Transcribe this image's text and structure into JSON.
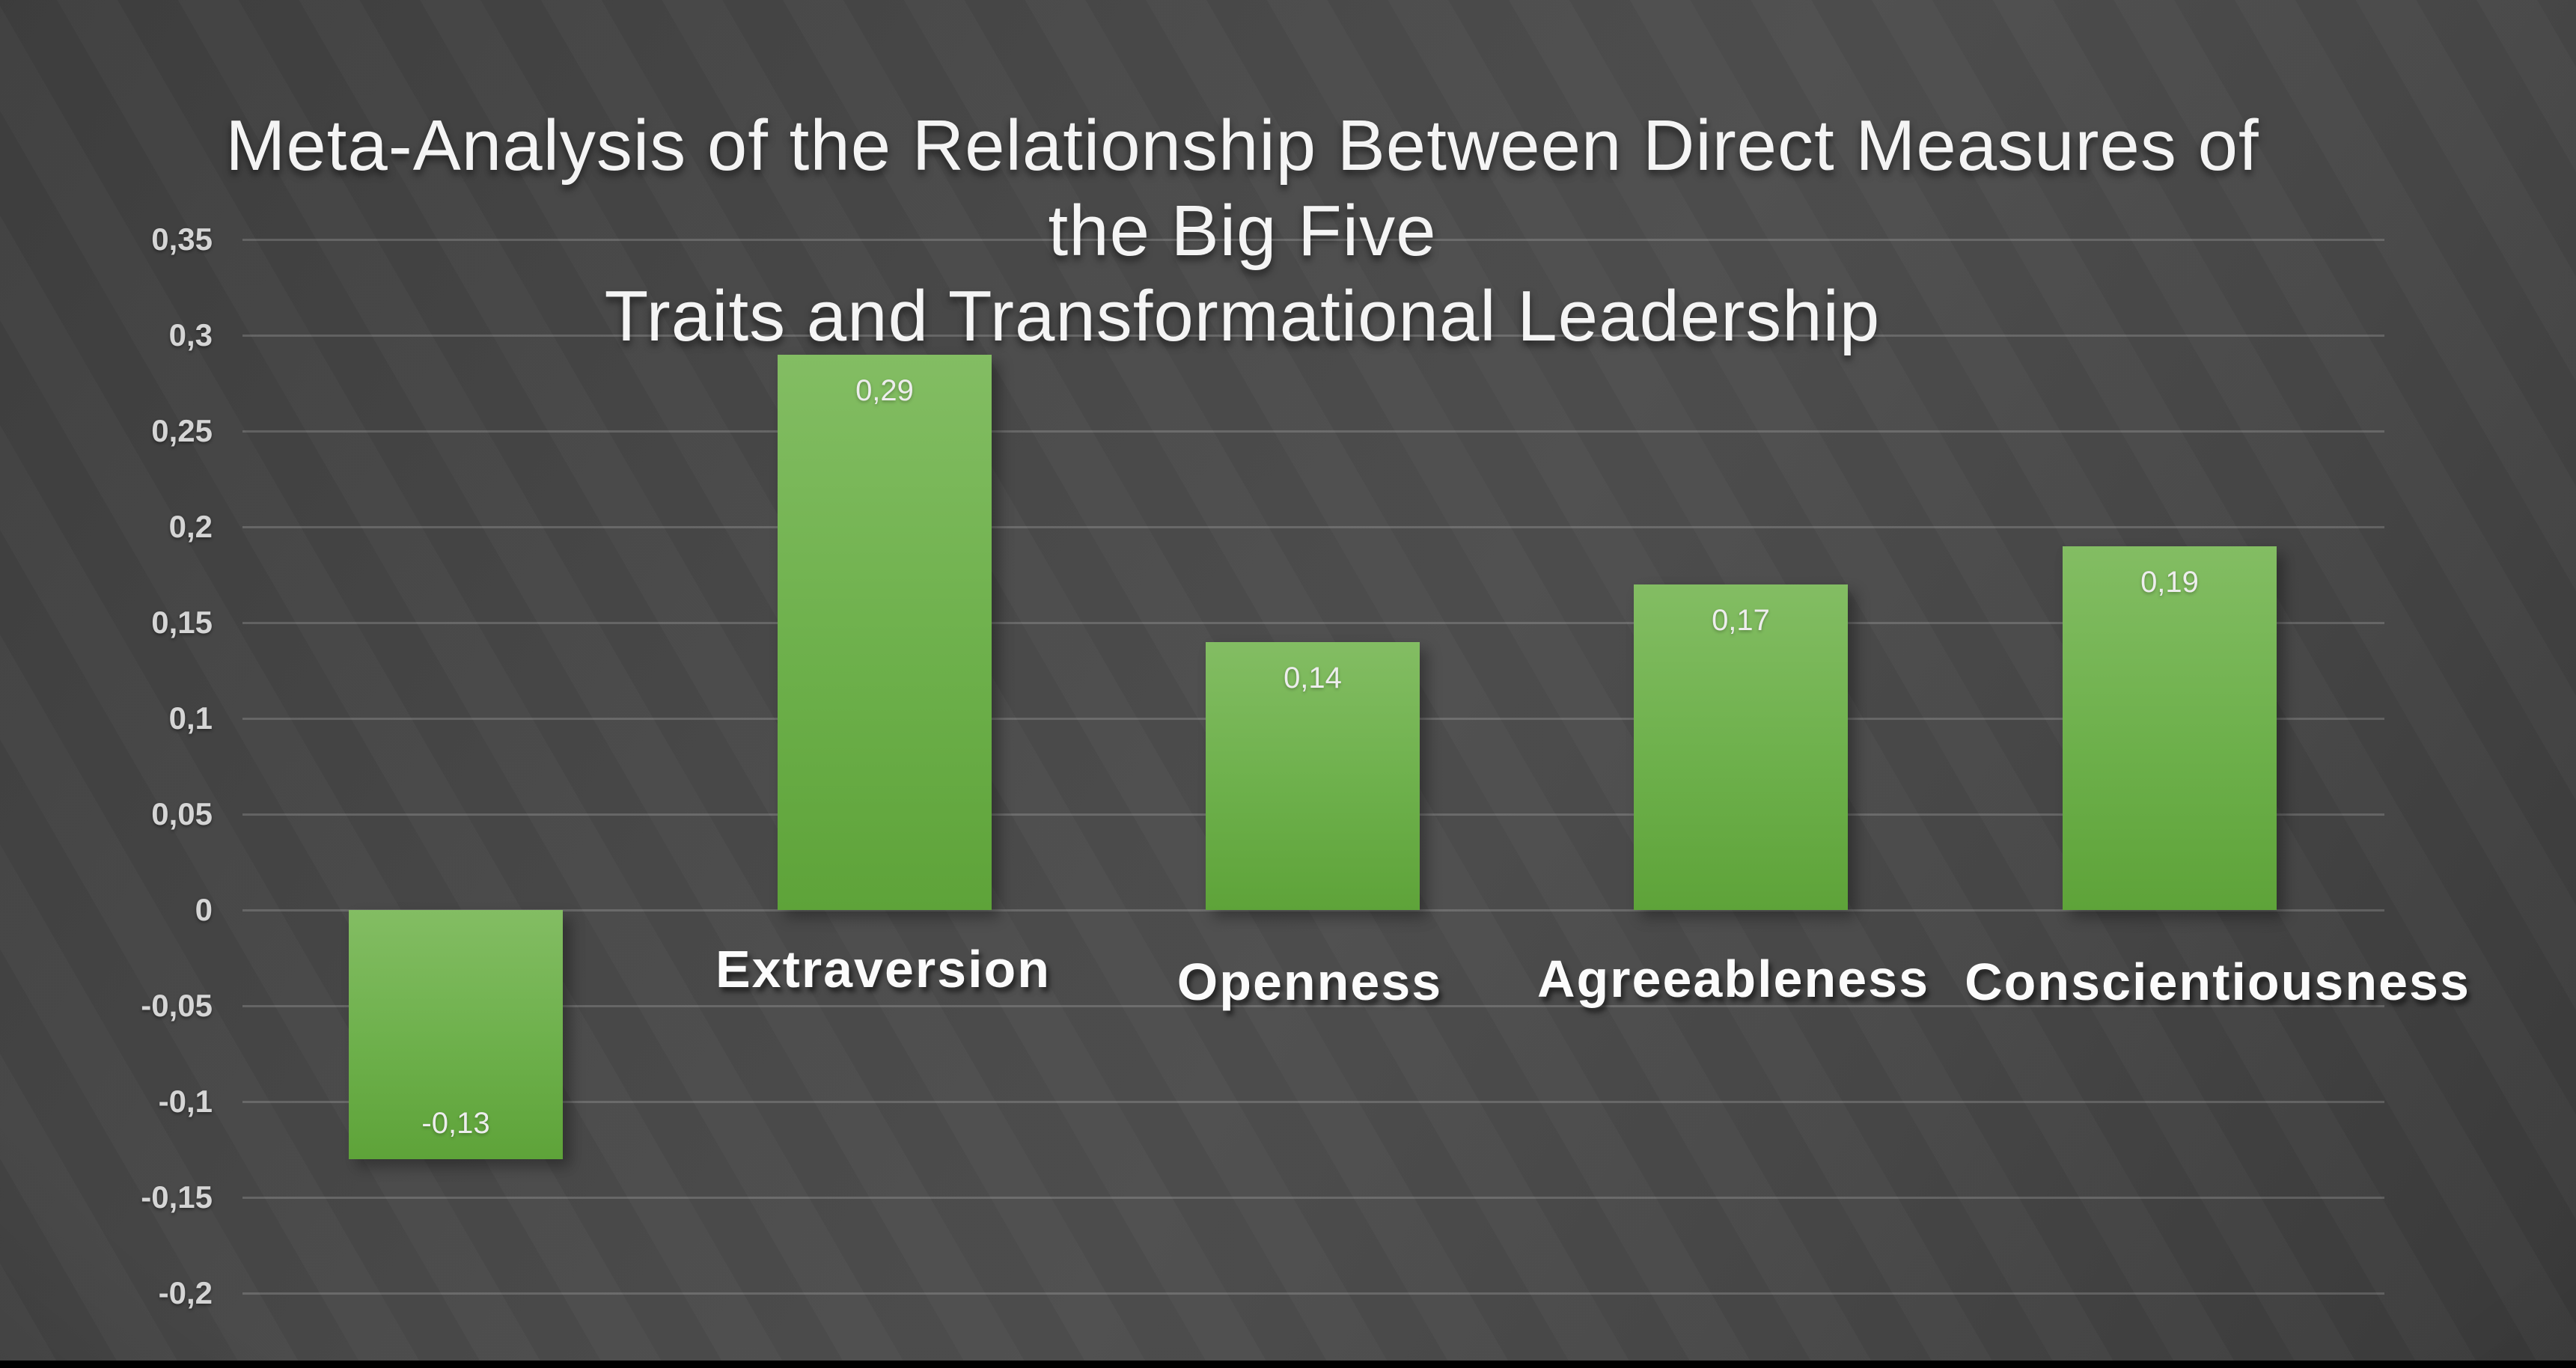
{
  "title": {
    "line1": "Meta-Analysis of the Relationship Between Direct Measures of the Big Five",
    "line2": "Traits and Transformational Leadership"
  },
  "chart_data": {
    "type": "bar",
    "title": "Meta-Analysis of the Relationship Between Direct Measures of the Big Five Traits and Transformational Leadership",
    "categories": [
      "",
      "Extraversion",
      "Openness",
      "Agreeableness",
      "Conscientiousness"
    ],
    "values": [
      -0.13,
      0.29,
      0.14,
      0.17,
      0.19
    ],
    "value_labels": [
      "-0,13",
      "0,29",
      "0,14",
      "0,17",
      "0,19"
    ],
    "y_ticks": [
      0.35,
      0.3,
      0.25,
      0.2,
      0.15,
      0.1,
      0.05,
      0,
      -0.05,
      -0.1,
      -0.15,
      -0.2
    ],
    "y_tick_labels": [
      "0,35",
      "0,3",
      "0,25",
      "0,2",
      "0,15",
      "0,1",
      "0,05",
      "0",
      "-0,05",
      "-0,1",
      "-0,15",
      "-0,2"
    ],
    "ylim": [
      -0.2,
      0.35
    ],
    "xlabel": "",
    "ylabel": "",
    "grid": true,
    "legend": false,
    "decimal_separator": ",",
    "colors": {
      "bar_top": "#83bd63",
      "bar_bottom": "#5ea339",
      "background": "#474747",
      "gridline": "rgba(255,255,255,0.17)",
      "title_text": "#f4f4f4",
      "tick_text": "#d5d5d5",
      "value_label_text": "#ededed",
      "category_text": "#fbfbfb"
    }
  }
}
